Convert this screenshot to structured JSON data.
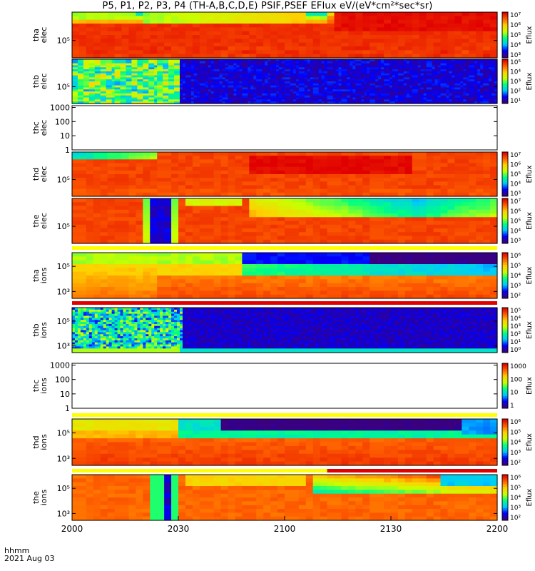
{
  "title": "P5, P1, P2, P3, P4 (TH-A,B,C,D,E) PSIF,PSEF EFlux eV/(eV*cm²*sec*sr)",
  "chart_data": {
    "type": "heatmap",
    "xlabel_lines": [
      "hhmm",
      "2021 Aug 03"
    ],
    "x_ticks": [
      "2000",
      "2030",
      "2100",
      "2130",
      "2200"
    ],
    "panels": [
      {
        "name": "tha-elec",
        "label": [
          "tha",
          "elec"
        ],
        "y_ticks": [
          "10⁵"
        ],
        "cbar_label": "Eflux",
        "cbar_ticks": [
          "10⁷",
          "10⁶",
          "10⁵",
          "10⁴",
          "10³"
        ],
        "pattern": "tha_elec"
      },
      {
        "name": "thb-elec",
        "label": [
          "thb",
          "elec"
        ],
        "y_ticks": [
          "10⁵"
        ],
        "cbar_label": "Eflux",
        "cbar_ticks": [
          "10⁵",
          "10⁴",
          "10³",
          "10²",
          "10¹"
        ],
        "pattern": "thb_elec"
      },
      {
        "name": "thc-elec",
        "label": [
          "thc",
          "elec"
        ],
        "y_ticks": [
          "1000",
          "100",
          "10",
          "1"
        ],
        "cbar_label": "",
        "cbar_ticks": [],
        "pattern": "empty"
      },
      {
        "name": "thd-elec",
        "label": [
          "thd",
          "elec"
        ],
        "y_ticks": [
          "10⁵"
        ],
        "cbar_label": "Eflux",
        "cbar_ticks": [
          "10⁷",
          "10⁶",
          "10⁵",
          "10⁴",
          "10³"
        ],
        "pattern": "thd_elec"
      },
      {
        "name": "the-elec",
        "label": [
          "the",
          "elec"
        ],
        "y_ticks": [
          "10⁵"
        ],
        "cbar_label": "Eflux",
        "cbar_ticks": [
          "10⁷",
          "10⁶",
          "10⁵",
          "10⁴",
          "10³"
        ],
        "pattern": "the_elec"
      },
      {
        "name": "tha-ions",
        "label": [
          "tha",
          "ions"
        ],
        "y_ticks": [
          "10⁵",
          "10³"
        ],
        "cbar_label": "Eflux",
        "cbar_ticks": [
          "10⁶",
          "10⁵",
          "10⁴",
          "10³",
          "10²"
        ],
        "pattern": "tha_ions"
      },
      {
        "name": "thb-ions",
        "label": [
          "thb",
          "ions"
        ],
        "y_ticks": [
          "10⁵",
          "10³"
        ],
        "cbar_label": "Eflux",
        "cbar_ticks": [
          "10⁵",
          "10⁴",
          "10³",
          "10²",
          "10¹",
          "10⁰"
        ],
        "pattern": "thb_ions"
      },
      {
        "name": "thc-ions",
        "label": [
          "thc",
          "ions"
        ],
        "y_ticks": [
          "1000",
          "100",
          "10",
          "1"
        ],
        "cbar_label": "Eflux",
        "cbar_ticks": [
          "1000",
          "100",
          "10",
          "1"
        ],
        "pattern": "empty"
      },
      {
        "name": "thd-ions",
        "label": [
          "thd",
          "ions"
        ],
        "y_ticks": [
          "10⁵",
          "10³"
        ],
        "cbar_label": "Eflux",
        "cbar_ticks": [
          "10⁶",
          "10⁵",
          "10⁴",
          "10³",
          "10²"
        ],
        "pattern": "thd_ions"
      },
      {
        "name": "the-ions",
        "label": [
          "the",
          "ions"
        ],
        "y_ticks": [
          "10⁵",
          "10³"
        ],
        "cbar_label": "Eflux",
        "cbar_ticks": [
          "10⁶",
          "10⁵",
          "10⁴",
          "10³",
          "10²"
        ],
        "pattern": "the_ions"
      }
    ],
    "status_bars": [
      {
        "after": "the-elec",
        "segments": [
          {
            "from": 0,
            "to": 1,
            "color": "yellow"
          }
        ]
      },
      {
        "after": "tha-ions",
        "segments": [
          {
            "from": 0,
            "to": 1,
            "color": "red"
          }
        ]
      },
      {
        "after": "thc-ions",
        "segments": [
          {
            "from": 0,
            "to": 1,
            "color": "yellow"
          }
        ]
      },
      {
        "after": "thd-ions",
        "segments": [
          {
            "from": 0,
            "to": 0.6,
            "color": "yellow"
          },
          {
            "from": 0.6,
            "to": 1,
            "color": "red"
          }
        ]
      }
    ],
    "colormap": [
      "#3a007f",
      "#0000ff",
      "#00c8ff",
      "#00ff80",
      "#c8ff00",
      "#ffd000",
      "#ff6000",
      "#e00000"
    ],
    "grid": false
  }
}
